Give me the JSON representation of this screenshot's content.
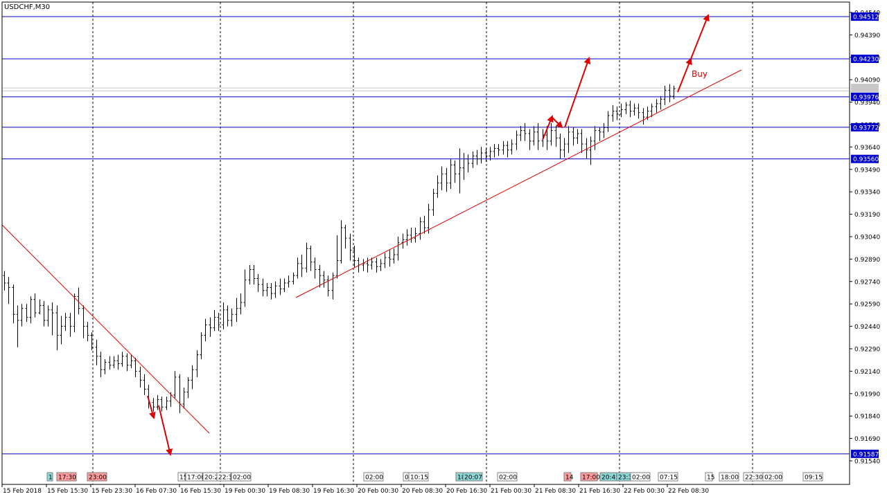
{
  "chart_data": {
    "type": "candlestick",
    "title": "USDCHF,M30",
    "symbol": "USDCHF",
    "timeframe": "M30",
    "ylim": [
      0.9148,
      0.9462
    ],
    "grid": "vertical dashed",
    "colors": {
      "background": "#ffffff",
      "bars": "#000000",
      "hline": "#0000cc",
      "trendline": "#e00000",
      "arrow": "#e00000",
      "price_label_bg": "#0000cc",
      "price_label_text": "#ffffff",
      "event_red": "#ff9c9c",
      "event_teal": "#8fd8d8"
    },
    "y_ticks": [
      "0.94540",
      "0.94390",
      "0.94240",
      "0.94090",
      "0.93940",
      "0.93790",
      "0.93640",
      "0.93490",
      "0.93340",
      "0.93190",
      "0.93040",
      "0.92890",
      "0.92740",
      "0.92590",
      "0.92440",
      "0.92290",
      "0.92140",
      "0.91990",
      "0.91840",
      "0.91690",
      "0.91540"
    ],
    "x_ticks": [
      "15 Feb 2018",
      "15 Feb 15:30",
      "15 Feb 23:30",
      "16 Feb 07:30",
      "16 Feb 15:30",
      "19 Feb 00:30",
      "19 Feb 08:30",
      "19 Feb 16:30",
      "20 Feb 00:30",
      "20 Feb 08:30",
      "20 Feb 16:30",
      "21 Feb 00:30",
      "21 Feb 08:30",
      "21 Feb 16:30",
      "22 Feb 00:30",
      "22 Feb 08:30"
    ],
    "horizontal_levels": [
      {
        "value": 0.94512,
        "label": "0.94512"
      },
      {
        "value": 0.9423,
        "label": "0.94230"
      },
      {
        "value": 0.93976,
        "label": "0.93976"
      },
      {
        "value": 0.93772,
        "label": "0.93772"
      },
      {
        "value": 0.9356,
        "label": "0.93560"
      },
      {
        "value": 0.91587,
        "label": "0.91587"
      }
    ],
    "current_price_lines": [
      0.94035,
      0.94015
    ],
    "annotation": "Buy",
    "event_labels": [
      {
        "text": "1",
        "color": "teal"
      },
      {
        "text": "17:30",
        "color": "red"
      },
      {
        "text": "23:00",
        "color": "red"
      },
      {
        "text": "15",
        "color": "plain"
      },
      {
        "text": "17:00",
        "color": "plain"
      },
      {
        "text": "20:2",
        "color": "plain"
      },
      {
        "text": "22:3",
        "color": "plain"
      },
      {
        "text": "02:00",
        "color": "plain"
      },
      {
        "text": "02:00",
        "color": "plain"
      },
      {
        "text": "0",
        "color": "plain"
      },
      {
        "text": "10:15",
        "color": "plain"
      },
      {
        "text": "18",
        "color": "teal"
      },
      {
        "text": "20:07",
        "color": "teal"
      },
      {
        "text": "02:00",
        "color": "plain"
      },
      {
        "text": "14",
        "color": "red"
      },
      {
        "text": "17:00",
        "color": "red"
      },
      {
        "text": "20:45",
        "color": "teal"
      },
      {
        "text": "23:3",
        "color": "teal"
      },
      {
        "text": "02:00",
        "color": "plain"
      },
      {
        "text": "07:15",
        "color": "plain"
      },
      {
        "text": "15",
        "color": "plain"
      },
      {
        "text": "18:00",
        "color": "plain"
      },
      {
        "text": "22:30",
        "color": "plain"
      },
      {
        "text": "02:00",
        "color": "plain"
      },
      {
        "text": "09:15",
        "color": "plain"
      }
    ],
    "bars": [
      [
        0.9278,
        0.9273,
        0.9281,
        0.9268
      ],
      [
        0.9273,
        0.927,
        0.9277,
        0.9259
      ],
      [
        0.927,
        0.9252,
        0.9272,
        0.9246
      ],
      [
        0.9252,
        0.9248,
        0.9258,
        0.923
      ],
      [
        0.9248,
        0.9256,
        0.9259,
        0.9244
      ],
      [
        0.9256,
        0.925,
        0.9259,
        0.9247
      ],
      [
        0.925,
        0.9262,
        0.9264,
        0.9246
      ],
      [
        0.9262,
        0.9253,
        0.9266,
        0.925
      ],
      [
        0.9253,
        0.9258,
        0.9262,
        0.9252
      ],
      [
        0.9258,
        0.9248,
        0.9261,
        0.9244
      ],
      [
        0.9248,
        0.9255,
        0.9258,
        0.9244
      ],
      [
        0.9255,
        0.9253,
        0.926,
        0.9238
      ],
      [
        0.9253,
        0.9238,
        0.9258,
        0.9228
      ],
      [
        0.9238,
        0.9244,
        0.9251,
        0.9232
      ],
      [
        0.9244,
        0.925,
        0.9253,
        0.9241
      ],
      [
        0.925,
        0.9244,
        0.9253,
        0.9237
      ],
      [
        0.9244,
        0.9264,
        0.9266,
        0.924
      ],
      [
        0.9264,
        0.9256,
        0.927,
        0.9252
      ],
      [
        0.9256,
        0.9244,
        0.9258,
        0.9236
      ],
      [
        0.9244,
        0.9238,
        0.9247,
        0.9234
      ],
      [
        0.9238,
        0.923,
        0.924,
        0.9228
      ],
      [
        0.923,
        0.9224,
        0.9235,
        0.9218
      ],
      [
        0.9224,
        0.9215,
        0.9227,
        0.921
      ],
      [
        0.9215,
        0.922,
        0.9222,
        0.9212
      ],
      [
        0.922,
        0.9218,
        0.9224,
        0.9215
      ],
      [
        0.9218,
        0.9221,
        0.9224,
        0.9216
      ],
      [
        0.9221,
        0.9219,
        0.9225,
        0.9215
      ],
      [
        0.9219,
        0.9224,
        0.9227,
        0.9217
      ],
      [
        0.9224,
        0.9218,
        0.9226,
        0.9214
      ],
      [
        0.9218,
        0.9221,
        0.9225,
        0.9216
      ],
      [
        0.9221,
        0.9214,
        0.9223,
        0.921
      ],
      [
        0.9214,
        0.9208,
        0.9217,
        0.9203
      ],
      [
        0.9208,
        0.9202,
        0.9212,
        0.9198
      ],
      [
        0.9202,
        0.9193,
        0.9205,
        0.9189
      ],
      [
        0.9193,
        0.919,
        0.9196,
        0.9187
      ],
      [
        0.919,
        0.9195,
        0.9198,
        0.9188
      ],
      [
        0.9195,
        0.919,
        0.9197,
        0.9187
      ],
      [
        0.919,
        0.9194,
        0.9197,
        0.9188
      ],
      [
        0.9194,
        0.9198,
        0.92,
        0.919
      ],
      [
        0.9198,
        0.921,
        0.9214,
        0.9196
      ],
      [
        0.921,
        0.9192,
        0.9212,
        0.9186
      ],
      [
        0.9192,
        0.92,
        0.9203,
        0.9189
      ],
      [
        0.92,
        0.9208,
        0.921,
        0.9196
      ],
      [
        0.9208,
        0.9215,
        0.9218,
        0.9202
      ],
      [
        0.9215,
        0.9225,
        0.9228,
        0.921
      ],
      [
        0.9225,
        0.9238,
        0.924,
        0.9222
      ],
      [
        0.9238,
        0.9245,
        0.9249,
        0.9234
      ],
      [
        0.9245,
        0.9243,
        0.925,
        0.9237
      ],
      [
        0.9243,
        0.925,
        0.9255,
        0.9241
      ],
      [
        0.925,
        0.9245,
        0.9253,
        0.9241
      ],
      [
        0.9245,
        0.9255,
        0.926,
        0.9242
      ],
      [
        0.9255,
        0.9248,
        0.9258,
        0.9244
      ],
      [
        0.9248,
        0.9252,
        0.9256,
        0.9244
      ],
      [
        0.9252,
        0.9256,
        0.9263,
        0.9247
      ],
      [
        0.9256,
        0.926,
        0.9266,
        0.9252
      ],
      [
        0.926,
        0.9275,
        0.9282,
        0.9257
      ],
      [
        0.9275,
        0.9282,
        0.9285,
        0.9272
      ],
      [
        0.9282,
        0.9276,
        0.9285,
        0.9272
      ],
      [
        0.9276,
        0.9272,
        0.9279,
        0.9267
      ],
      [
        0.9272,
        0.9268,
        0.9276,
        0.9264
      ],
      [
        0.9268,
        0.927,
        0.9273,
        0.9264
      ],
      [
        0.927,
        0.9266,
        0.9273,
        0.9262
      ],
      [
        0.9266,
        0.9271,
        0.9274,
        0.9263
      ],
      [
        0.9271,
        0.9269,
        0.9276,
        0.9265
      ],
      [
        0.9269,
        0.9273,
        0.9276,
        0.9267
      ],
      [
        0.9273,
        0.9274,
        0.9278,
        0.927
      ],
      [
        0.9274,
        0.9278,
        0.928,
        0.9272
      ],
      [
        0.9278,
        0.9286,
        0.929,
        0.9276
      ],
      [
        0.9286,
        0.9283,
        0.9292,
        0.9277
      ],
      [
        0.9283,
        0.9296,
        0.93,
        0.928
      ],
      [
        0.9296,
        0.9287,
        0.9298,
        0.9281
      ],
      [
        0.9287,
        0.9282,
        0.929,
        0.9276
      ],
      [
        0.9282,
        0.9278,
        0.9285,
        0.927
      ],
      [
        0.9278,
        0.9275,
        0.9281,
        0.927
      ],
      [
        0.9275,
        0.9268,
        0.9278,
        0.9264
      ],
      [
        0.9268,
        0.9278,
        0.928,
        0.9262
      ],
      [
        0.9278,
        0.9288,
        0.9305,
        0.9276
      ],
      [
        0.9288,
        0.931,
        0.9315,
        0.9286
      ],
      [
        0.931,
        0.9303,
        0.9312,
        0.9296
      ],
      [
        0.9303,
        0.9295,
        0.9306,
        0.9288
      ],
      [
        0.9295,
        0.9288,
        0.9298,
        0.9283
      ],
      [
        0.9288,
        0.9285,
        0.929,
        0.928
      ],
      [
        0.9285,
        0.9286,
        0.9289,
        0.9281
      ],
      [
        0.9286,
        0.9285,
        0.929,
        0.928
      ],
      [
        0.9285,
        0.9287,
        0.929,
        0.9282
      ],
      [
        0.9287,
        0.9284,
        0.929,
        0.928
      ],
      [
        0.9284,
        0.9286,
        0.9289,
        0.9281
      ],
      [
        0.9286,
        0.929,
        0.9293,
        0.9283
      ],
      [
        0.929,
        0.9289,
        0.9295,
        0.9284
      ],
      [
        0.9289,
        0.9292,
        0.9296,
        0.9286
      ],
      [
        0.9292,
        0.93,
        0.9304,
        0.9288
      ],
      [
        0.93,
        0.9302,
        0.9306,
        0.9296
      ],
      [
        0.9302,
        0.9305,
        0.9309,
        0.9298
      ],
      [
        0.9305,
        0.9303,
        0.931,
        0.93
      ],
      [
        0.9303,
        0.9306,
        0.931,
        0.93
      ],
      [
        0.9306,
        0.9314,
        0.9317,
        0.9302
      ],
      [
        0.9314,
        0.931,
        0.9318,
        0.9306
      ],
      [
        0.931,
        0.9322,
        0.9326,
        0.9306
      ],
      [
        0.9322,
        0.9333,
        0.9336,
        0.9318
      ],
      [
        0.9333,
        0.934,
        0.9345,
        0.933
      ],
      [
        0.934,
        0.9346,
        0.9351,
        0.9335
      ],
      [
        0.9346,
        0.934,
        0.935,
        0.9334
      ],
      [
        0.934,
        0.9352,
        0.9356,
        0.9336
      ],
      [
        0.9352,
        0.9346,
        0.9355,
        0.934
      ],
      [
        0.9346,
        0.935,
        0.9363,
        0.9333
      ],
      [
        0.935,
        0.9356,
        0.936,
        0.9342
      ],
      [
        0.9356,
        0.9353,
        0.9359,
        0.9347
      ],
      [
        0.9353,
        0.9358,
        0.9361,
        0.935
      ],
      [
        0.9358,
        0.9356,
        0.9362,
        0.9352
      ],
      [
        0.9356,
        0.936,
        0.9364,
        0.9353
      ],
      [
        0.936,
        0.9358,
        0.9363,
        0.9354
      ],
      [
        0.9358,
        0.9361,
        0.9364,
        0.9355
      ],
      [
        0.9361,
        0.9363,
        0.9366,
        0.9357
      ],
      [
        0.9363,
        0.9362,
        0.9366,
        0.9358
      ],
      [
        0.9362,
        0.9365,
        0.9368,
        0.9359
      ],
      [
        0.9365,
        0.9362,
        0.9368,
        0.9357
      ],
      [
        0.9362,
        0.9366,
        0.9369,
        0.9359
      ],
      [
        0.9366,
        0.9372,
        0.9375,
        0.9362
      ],
      [
        0.9372,
        0.9375,
        0.9378,
        0.9368
      ],
      [
        0.9375,
        0.9373,
        0.938,
        0.9368
      ],
      [
        0.9373,
        0.9368,
        0.9376,
        0.9362
      ],
      [
        0.9368,
        0.9374,
        0.9378,
        0.9365
      ],
      [
        0.9374,
        0.9368,
        0.938,
        0.9362
      ],
      [
        0.9368,
        0.9372,
        0.9376,
        0.9364
      ],
      [
        0.9372,
        0.9368,
        0.9378,
        0.9362
      ],
      [
        0.9368,
        0.9375,
        0.938,
        0.9365
      ],
      [
        0.9375,
        0.937,
        0.9378,
        0.9364
      ],
      [
        0.937,
        0.9362,
        0.9373,
        0.9356
      ],
      [
        0.9362,
        0.9366,
        0.937,
        0.9357
      ],
      [
        0.9366,
        0.9374,
        0.9378,
        0.936
      ],
      [
        0.9374,
        0.937,
        0.9377,
        0.9365
      ],
      [
        0.937,
        0.9373,
        0.9376,
        0.9366
      ],
      [
        0.9373,
        0.9366,
        0.9376,
        0.936
      ],
      [
        0.9366,
        0.9362,
        0.937,
        0.9356
      ],
      [
        0.9362,
        0.9368,
        0.9371,
        0.9352
      ],
      [
        0.9368,
        0.9375,
        0.9378,
        0.9362
      ],
      [
        0.9375,
        0.9374,
        0.9377,
        0.9368
      ],
      [
        0.9374,
        0.9377,
        0.938,
        0.937
      ],
      [
        0.9377,
        0.9385,
        0.9388,
        0.9374
      ],
      [
        0.9385,
        0.9388,
        0.9392,
        0.9381
      ],
      [
        0.9388,
        0.9386,
        0.9391,
        0.9382
      ],
      [
        0.9386,
        0.9389,
        0.9393,
        0.9384
      ],
      [
        0.9389,
        0.9392,
        0.9394,
        0.9386
      ],
      [
        0.9392,
        0.9388,
        0.9395,
        0.9384
      ],
      [
        0.9388,
        0.939,
        0.9393,
        0.9385
      ],
      [
        0.939,
        0.9387,
        0.9393,
        0.9383
      ],
      [
        0.9387,
        0.9384,
        0.939,
        0.9379
      ],
      [
        0.9384,
        0.9388,
        0.9391,
        0.9382
      ],
      [
        0.9388,
        0.9391,
        0.9393,
        0.9384
      ],
      [
        0.9391,
        0.9393,
        0.9396,
        0.9387
      ],
      [
        0.9393,
        0.9396,
        0.9398,
        0.9389
      ],
      [
        0.9396,
        0.9402,
        0.9405,
        0.9392
      ],
      [
        0.9402,
        0.9398,
        0.9406,
        0.9394
      ],
      [
        0.9398,
        0.9403,
        0.9405,
        0.9396
      ]
    ]
  }
}
